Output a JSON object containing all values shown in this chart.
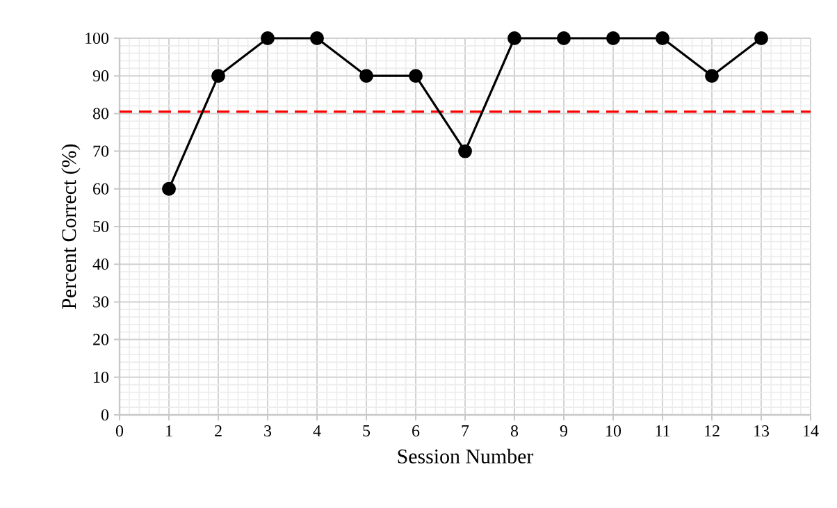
{
  "chart_data": {
    "type": "line",
    "xlabel": "Session Number",
    "ylabel": "Percent Correct (%)",
    "x": [
      1,
      2,
      3,
      4,
      5,
      6,
      7,
      8,
      9,
      10,
      11,
      12,
      13
    ],
    "series": [
      {
        "color": "#000000",
        "values": [
          60,
          90,
          100,
          100,
          90,
          90,
          70,
          100,
          100,
          100,
          100,
          90,
          100
        ]
      }
    ],
    "xlim": [
      0,
      14
    ],
    "xticks": [
      0,
      1,
      2,
      3,
      4,
      5,
      6,
      7,
      8,
      9,
      10,
      11,
      12,
      13,
      14
    ],
    "ylim": [
      0,
      100
    ],
    "yticks": [
      0,
      10,
      20,
      30,
      40,
      50,
      60,
      70,
      80,
      90,
      100
    ],
    "ref_lines": [
      {
        "axis": "y",
        "value": 80.5,
        "color": "#ff0000",
        "line_style": "dashed"
      }
    ],
    "grid": true,
    "marker": "circle",
    "line_style": "solid"
  }
}
